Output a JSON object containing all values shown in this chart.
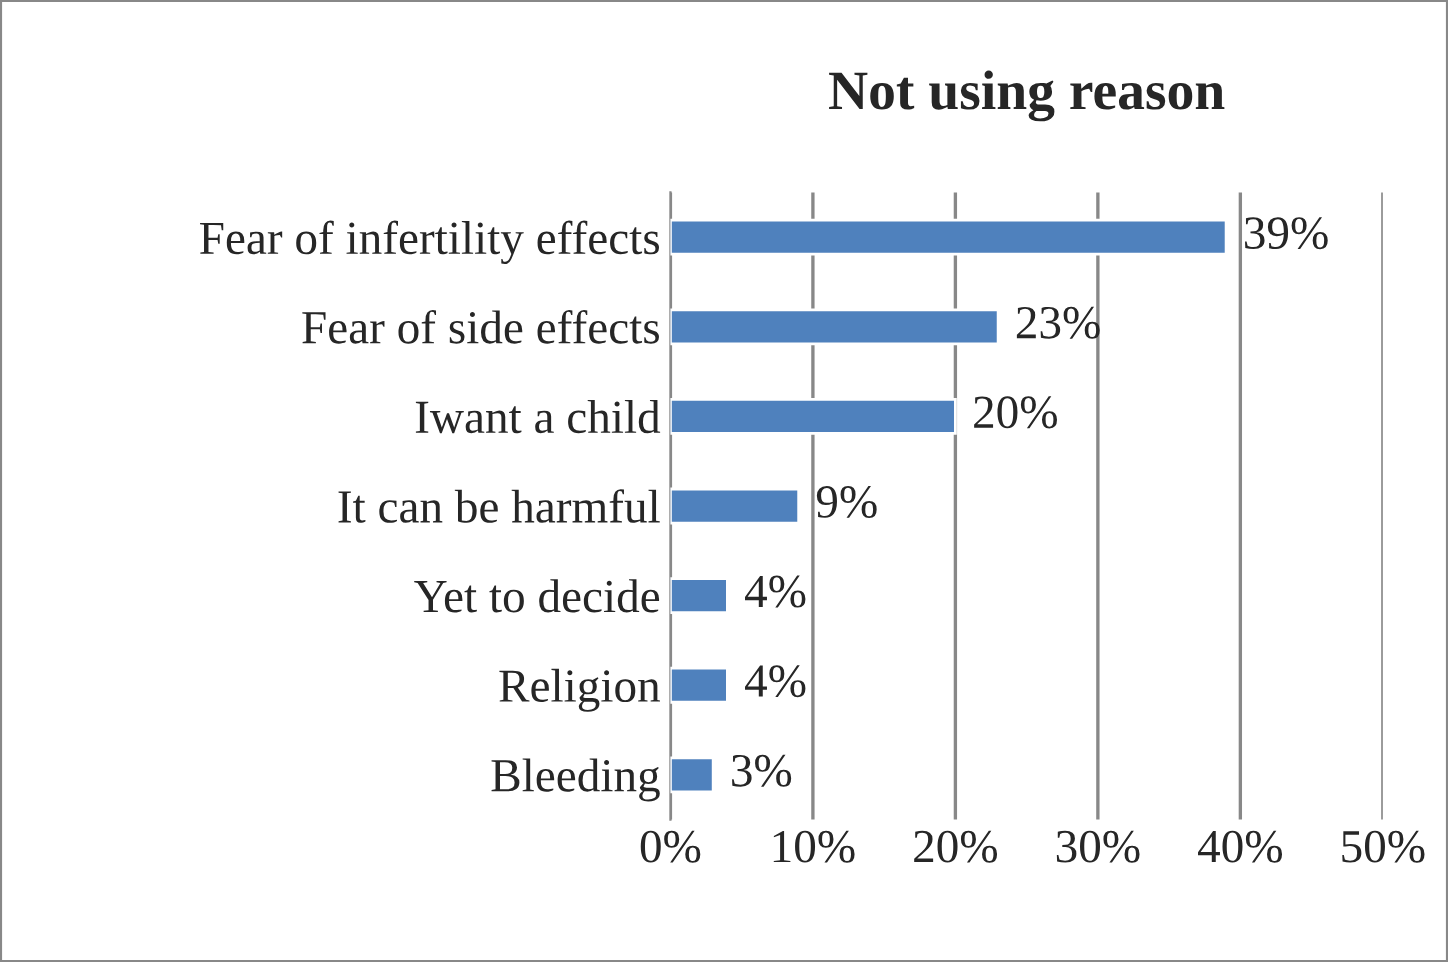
{
  "chart_data": {
    "type": "bar",
    "orientation": "horizontal",
    "title": "Not using reason",
    "categories": [
      "Fear of infertility effects",
      "Fear of side effects",
      "Iwant a child",
      "It can be harmful",
      "Yet to decide",
      "Religion",
      "Bleeding"
    ],
    "values": [
      39,
      23,
      20,
      9,
      4,
      4,
      3
    ],
    "value_labels": [
      "39%",
      "23%",
      "20%",
      "9%",
      "4%",
      "4%",
      "3%"
    ],
    "color": "#4f81bd",
    "xlim": [
      0,
      50
    ],
    "xticks": [
      {
        "value": 0,
        "label": "0%"
      },
      {
        "value": 10,
        "label": "10%"
      },
      {
        "value": 20,
        "label": "20%"
      },
      {
        "value": 30,
        "label": "30%"
      },
      {
        "value": 40,
        "label": "40%"
      },
      {
        "value": 50,
        "label": "50%"
      }
    ],
    "grid": "x",
    "legend": false
  }
}
